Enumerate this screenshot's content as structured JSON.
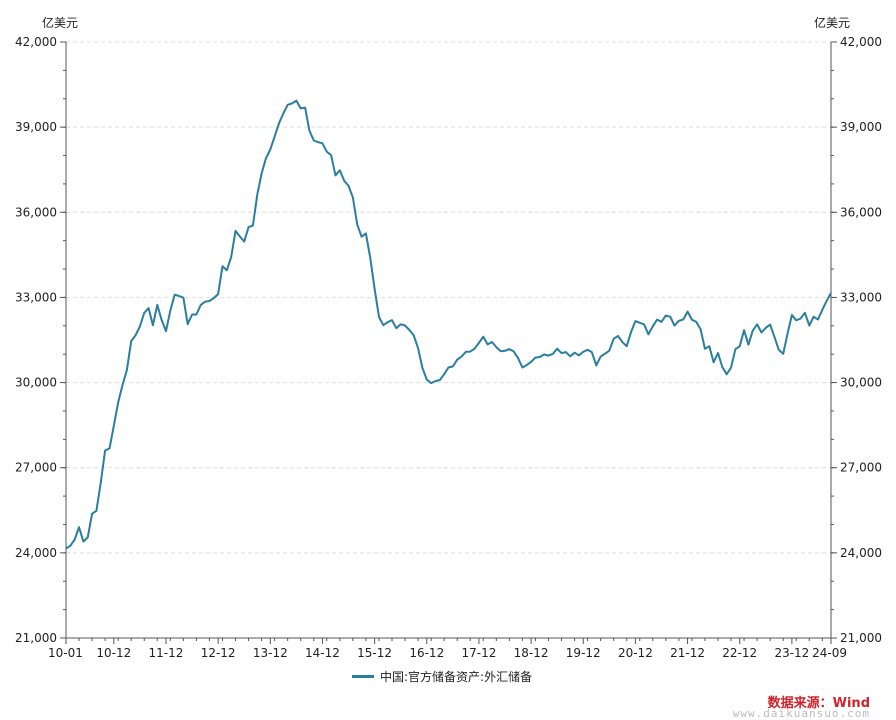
{
  "chart_data": {
    "type": "line",
    "title": "",
    "unit_left": "亿美元",
    "unit_right": "亿美元",
    "ylim": [
      21000,
      42000
    ],
    "yticks": [
      {
        "value": 21000,
        "label": "21,000"
      },
      {
        "value": 24000,
        "label": "24,000"
      },
      {
        "value": 27000,
        "label": "27,000"
      },
      {
        "value": 30000,
        "label": "30,000"
      },
      {
        "value": 33000,
        "label": "33,000"
      },
      {
        "value": 36000,
        "label": "36,000"
      },
      {
        "value": 39000,
        "label": "39,000"
      },
      {
        "value": 42000,
        "label": "42,000"
      }
    ],
    "xticks": [
      "10-01",
      "10-12",
      "11-12",
      "12-12",
      "13-12",
      "14-12",
      "15-12",
      "16-12",
      "17-12",
      "18-12",
      "19-12",
      "20-12",
      "21-12",
      "22-12",
      "23-12",
      "24-09"
    ],
    "x_range": [
      "2010-01",
      "2024-09"
    ],
    "grid": true,
    "legend_position": "bottom",
    "colors": {
      "series": "#2a7ea0",
      "grid": "#dddddd",
      "axis": "#555555"
    },
    "series": [
      {
        "name": "中国:官方储备资产:外汇储备",
        "points": [
          [
            "2010-01",
            24153
          ],
          [
            "2010-02",
            24247
          ],
          [
            "2010-03",
            24471
          ],
          [
            "2010-04",
            24905
          ],
          [
            "2010-05",
            24395
          ],
          [
            "2010-06",
            24543
          ],
          [
            "2010-07",
            25380
          ],
          [
            "2010-08",
            25483
          ],
          [
            "2010-09",
            26483
          ],
          [
            "2010-10",
            27608
          ],
          [
            "2010-11",
            27680
          ],
          [
            "2010-12",
            28473
          ],
          [
            "2011-01",
            29300
          ],
          [
            "2011-02",
            29914
          ],
          [
            "2011-03",
            30447
          ],
          [
            "2011-04",
            31458
          ],
          [
            "2011-05",
            31663
          ],
          [
            "2011-06",
            31975
          ],
          [
            "2011-07",
            32450
          ],
          [
            "2011-08",
            32625
          ],
          [
            "2011-09",
            32017
          ],
          [
            "2011-10",
            32738
          ],
          [
            "2011-11",
            32209
          ],
          [
            "2011-12",
            31811
          ],
          [
            "2012-01",
            32536
          ],
          [
            "2012-02",
            33096
          ],
          [
            "2012-03",
            33050
          ],
          [
            "2012-04",
            32989
          ],
          [
            "2012-05",
            32061
          ],
          [
            "2012-06",
            32400
          ],
          [
            "2012-07",
            32400
          ],
          [
            "2012-08",
            32729
          ],
          [
            "2012-09",
            32851
          ],
          [
            "2012-10",
            32874
          ],
          [
            "2012-11",
            32977
          ],
          [
            "2012-12",
            33116
          ],
          [
            "2013-01",
            34100
          ],
          [
            "2013-02",
            33955
          ],
          [
            "2013-03",
            34426
          ],
          [
            "2013-04",
            35345
          ],
          [
            "2013-05",
            35148
          ],
          [
            "2013-06",
            34967
          ],
          [
            "2013-07",
            35478
          ],
          [
            "2013-08",
            35530
          ],
          [
            "2013-09",
            36627
          ],
          [
            "2013-10",
            37366
          ],
          [
            "2013-11",
            37900
          ],
          [
            "2013-12",
            38213
          ],
          [
            "2014-01",
            38666
          ],
          [
            "2014-02",
            39137
          ],
          [
            "2014-03",
            39481
          ],
          [
            "2014-04",
            39788
          ],
          [
            "2014-05",
            39838
          ],
          [
            "2014-06",
            39932
          ],
          [
            "2014-07",
            39662
          ],
          [
            "2014-08",
            39688
          ],
          [
            "2014-09",
            38877
          ],
          [
            "2014-10",
            38529
          ],
          [
            "2014-11",
            38473
          ],
          [
            "2014-12",
            38430
          ],
          [
            "2015-01",
            38134
          ],
          [
            "2015-02",
            38015
          ],
          [
            "2015-03",
            37301
          ],
          [
            "2015-04",
            37481
          ],
          [
            "2015-05",
            37111
          ],
          [
            "2015-06",
            36938
          ],
          [
            "2015-07",
            36513
          ],
          [
            "2015-08",
            35574
          ],
          [
            "2015-09",
            35141
          ],
          [
            "2015-10",
            35255
          ],
          [
            "2015-11",
            34383
          ],
          [
            "2015-12",
            33304
          ],
          [
            "2016-01",
            32309
          ],
          [
            "2016-02",
            32023
          ],
          [
            "2016-03",
            32126
          ],
          [
            "2016-04",
            32197
          ],
          [
            "2016-05",
            31917
          ],
          [
            "2016-06",
            32052
          ],
          [
            "2016-07",
            32011
          ],
          [
            "2016-08",
            31852
          ],
          [
            "2016-09",
            31664
          ],
          [
            "2016-10",
            31207
          ],
          [
            "2016-11",
            30516
          ],
          [
            "2016-12",
            30105
          ],
          [
            "2017-01",
            29982
          ],
          [
            "2017-02",
            30051
          ],
          [
            "2017-03",
            30091
          ],
          [
            "2017-04",
            30295
          ],
          [
            "2017-05",
            30536
          ],
          [
            "2017-06",
            30568
          ],
          [
            "2017-07",
            30807
          ],
          [
            "2017-08",
            30915
          ],
          [
            "2017-09",
            31085
          ],
          [
            "2017-10",
            31092
          ],
          [
            "2017-11",
            31193
          ],
          [
            "2017-12",
            31399
          ],
          [
            "2018-01",
            31615
          ],
          [
            "2018-02",
            31345
          ],
          [
            "2018-03",
            31428
          ],
          [
            "2018-04",
            31249
          ],
          [
            "2018-05",
            31106
          ],
          [
            "2018-06",
            31121
          ],
          [
            "2018-07",
            31179
          ],
          [
            "2018-08",
            31097
          ],
          [
            "2018-09",
            30870
          ],
          [
            "2018-10",
            30531
          ],
          [
            "2018-11",
            30617
          ],
          [
            "2018-12",
            30727
          ],
          [
            "2019-01",
            30879
          ],
          [
            "2019-02",
            30902
          ],
          [
            "2019-03",
            30988
          ],
          [
            "2019-04",
            30950
          ],
          [
            "2019-05",
            31010
          ],
          [
            "2019-06",
            31192
          ],
          [
            "2019-07",
            31037
          ],
          [
            "2019-08",
            31072
          ],
          [
            "2019-09",
            30924
          ],
          [
            "2019-10",
            31052
          ],
          [
            "2019-11",
            30956
          ],
          [
            "2019-12",
            31079
          ],
          [
            "2020-01",
            31155
          ],
          [
            "2020-02",
            31067
          ],
          [
            "2020-03",
            30606
          ],
          [
            "2020-04",
            30915
          ],
          [
            "2020-05",
            31017
          ],
          [
            "2020-06",
            31123
          ],
          [
            "2020-07",
            31544
          ],
          [
            "2020-08",
            31646
          ],
          [
            "2020-09",
            31426
          ],
          [
            "2020-10",
            31280
          ],
          [
            "2020-11",
            31785
          ],
          [
            "2020-12",
            32165
          ],
          [
            "2021-01",
            32107
          ],
          [
            "2021-02",
            32048
          ],
          [
            "2021-03",
            31700
          ],
          [
            "2021-04",
            31982
          ],
          [
            "2021-05",
            32218
          ],
          [
            "2021-06",
            32140
          ],
          [
            "2021-07",
            32359
          ],
          [
            "2021-08",
            32321
          ],
          [
            "2021-09",
            32006
          ],
          [
            "2021-10",
            32176
          ],
          [
            "2021-11",
            32224
          ],
          [
            "2021-12",
            32502
          ],
          [
            "2022-01",
            32216
          ],
          [
            "2022-02",
            32138
          ],
          [
            "2022-03",
            31880
          ],
          [
            "2022-04",
            31195
          ],
          [
            "2022-05",
            31278
          ],
          [
            "2022-06",
            30713
          ],
          [
            "2022-07",
            31041
          ],
          [
            "2022-08",
            30549
          ],
          [
            "2022-09",
            30290
          ],
          [
            "2022-10",
            30524
          ],
          [
            "2022-11",
            31175
          ],
          [
            "2022-12",
            31277
          ],
          [
            "2023-01",
            31845
          ],
          [
            "2023-02",
            31334
          ],
          [
            "2023-03",
            31839
          ],
          [
            "2023-04",
            32048
          ],
          [
            "2023-05",
            31765
          ],
          [
            "2023-06",
            31930
          ],
          [
            "2023-07",
            32043
          ],
          [
            "2023-08",
            31601
          ],
          [
            "2023-09",
            31151
          ],
          [
            "2023-10",
            31012
          ],
          [
            "2023-11",
            31718
          ],
          [
            "2023-12",
            32380
          ],
          [
            "2024-01",
            32193
          ],
          [
            "2024-02",
            32258
          ],
          [
            "2024-03",
            32457
          ],
          [
            "2024-04",
            32008
          ],
          [
            "2024-05",
            32320
          ],
          [
            "2024-06",
            32224
          ],
          [
            "2024-07",
            32564
          ],
          [
            "2024-08",
            32882
          ],
          [
            "2024-09",
            33164
          ]
        ]
      }
    ]
  },
  "legend": {
    "label": "中国:官方储备资产:外汇储备"
  },
  "source": {
    "text": "数据来源：Wind"
  },
  "watermark": {
    "text": "www.daikuansuo.com"
  }
}
